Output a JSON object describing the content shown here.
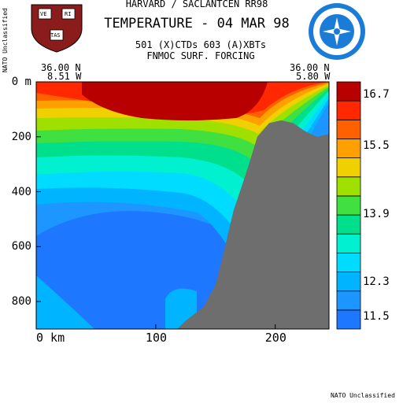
{
  "header": {
    "line1": "HARVARD / SACLANTCEN RR98",
    "title": "TEMPERATURE - 04 MAR 98",
    "line3": "501 (X)CTDs   603 (A)XBTs",
    "line4": "FNMOC SURF. FORCING"
  },
  "classification": {
    "side": "NATO Unclassified",
    "bottom": "NATO Unclassified"
  },
  "logos": {
    "left": "harvard-shield-icon",
    "right": "nato-saclantcen-emblem-icon",
    "shield_letters": [
      "VE",
      "RI",
      "TAS"
    ]
  },
  "section_ends": {
    "left": {
      "lat": "36.00 N",
      "lon": "8.51 W"
    },
    "right": {
      "lat": "36.00 N",
      "lon": "5.80 W"
    }
  },
  "colors": {
    "land": "#6e6e6e",
    "palette": [
      "#1e78ff",
      "#1e96ff",
      "#00b4ff",
      "#00dcff",
      "#00f0d0",
      "#00e08c",
      "#40e040",
      "#a0e000",
      "#f0d000",
      "#ffa000",
      "#ff6000",
      "#ff2800",
      "#b80000"
    ]
  },
  "chart_data": {
    "type": "heatmap",
    "title": "TEMPERATURE - 04 MAR 98",
    "x_axis": {
      "range": [
        0,
        245
      ],
      "ticks": [
        0,
        100,
        200
      ],
      "tick_labels": [
        "0 km",
        "100",
        "200"
      ],
      "unit": "km"
    },
    "y_axis": {
      "range": [
        0,
        900
      ],
      "ticks": [
        0,
        200,
        400,
        600,
        800
      ],
      "tick_labels": [
        "0 m",
        "200",
        "400",
        "600",
        "800"
      ],
      "unit": "m",
      "inverted": true
    },
    "colorbar": {
      "tick_labels": [
        "16.7",
        "15.5",
        "13.9",
        "12.3",
        "11.5"
      ],
      "tick_values": [
        16.7,
        15.5,
        13.9,
        12.3,
        11.5
      ],
      "levels": [
        11.2,
        11.5,
        11.9,
        12.3,
        12.7,
        13.1,
        13.5,
        13.9,
        14.3,
        14.7,
        15.1,
        15.5,
        16.1,
        16.7,
        17.0
      ]
    },
    "bathymetry": {
      "x_km": [
        118,
        125,
        140,
        150,
        158,
        165,
        172,
        178,
        185,
        195,
        205,
        215,
        225,
        235,
        245
      ],
      "depth_m": [
        900,
        870,
        820,
        740,
        600,
        470,
        380,
        300,
        200,
        150,
        140,
        150,
        180,
        200,
        190
      ]
    }
  }
}
